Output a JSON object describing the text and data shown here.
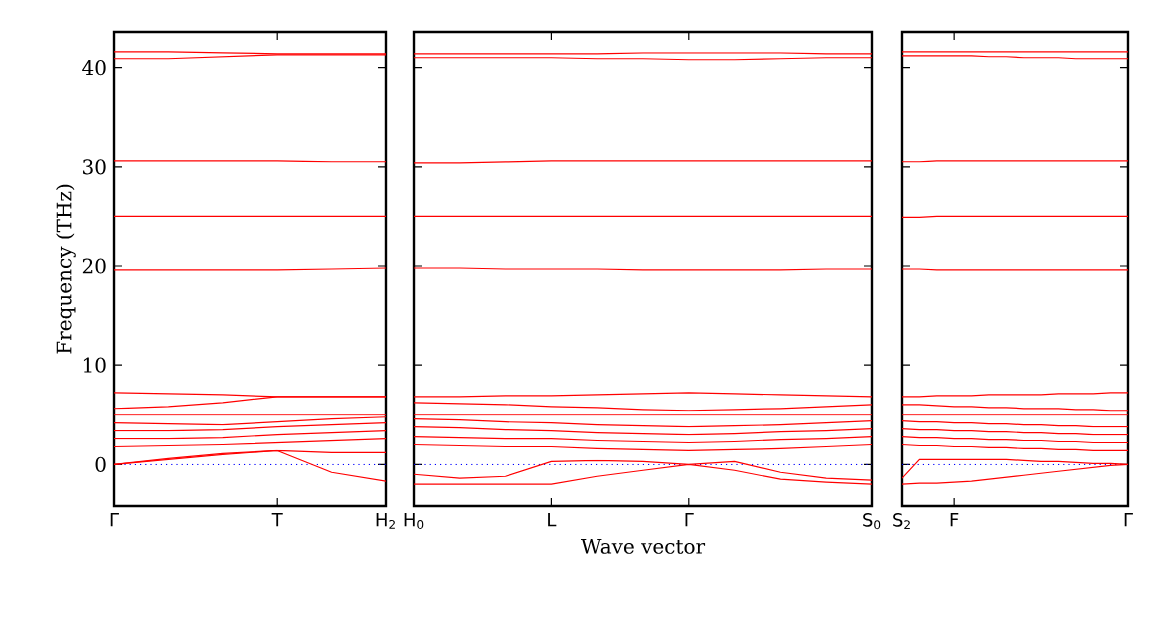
{
  "chart_data": [
    {
      "type": "line",
      "ylabel": "Frequency (THz)",
      "ylim": [
        -4.2,
        43.6
      ],
      "yticks": [
        0,
        10,
        20,
        30,
        40
      ],
      "categories": [
        "Γ",
        null,
        null,
        "T",
        null,
        "H$_{2}$"
      ],
      "line_style": "solid",
      "marker": "none",
      "ref_lines": [
        {
          "axis": "y",
          "value": 0,
          "color": "#0000ff",
          "line_style": "dotted"
        }
      ],
      "series": [
        {
          "color": "#ff0000",
          "values": [
            41.6,
            41.6,
            41.5,
            41.4,
            41.4,
            41.4
          ]
        },
        {
          "color": "#ff0000",
          "values": [
            40.9,
            40.9,
            41.1,
            41.3,
            41.3,
            41.3
          ]
        },
        {
          "color": "#ff0000",
          "values": [
            30.6,
            30.6,
            30.6,
            30.6,
            30.5,
            30.5
          ]
        },
        {
          "color": "#ff0000",
          "values": [
            25.0,
            25.0,
            25.0,
            25.0,
            25.0,
            25.0
          ]
        },
        {
          "color": "#ff0000",
          "values": [
            19.6,
            19.6,
            19.6,
            19.6,
            19.7,
            19.8
          ]
        },
        {
          "color": "#ff0000",
          "values": [
            7.2,
            7.1,
            7.0,
            6.8,
            6.8,
            6.8
          ]
        },
        {
          "color": "#ff0000",
          "values": [
            5.6,
            5.8,
            6.2,
            6.8,
            6.8,
            6.8
          ]
        },
        {
          "color": "#ff0000",
          "values": [
            5.0,
            5.0,
            5.0,
            5.0,
            5.0,
            5.0
          ]
        },
        {
          "color": "#ff0000",
          "values": [
            4.2,
            4.1,
            4.0,
            4.3,
            4.6,
            4.8
          ]
        },
        {
          "color": "#ff0000",
          "values": [
            3.4,
            3.4,
            3.5,
            3.8,
            4.0,
            4.2
          ]
        },
        {
          "color": "#ff0000",
          "values": [
            2.6,
            2.6,
            2.7,
            3.0,
            3.2,
            3.4
          ]
        },
        {
          "color": "#ff0000",
          "values": [
            1.8,
            1.9,
            2.0,
            2.2,
            2.4,
            2.6
          ]
        },
        {
          "color": "#ff0000",
          "values": [
            0.0,
            0.6,
            1.1,
            1.4,
            1.2,
            1.2
          ]
        },
        {
          "color": "#ff0000",
          "values": [
            0.0,
            0.5,
            1.0,
            1.4,
            -0.8,
            -1.7
          ]
        }
      ]
    },
    {
      "type": "line",
      "xlabel": "Wave vector",
      "ylim": [
        -4.2,
        43.6
      ],
      "yticks": [
        0,
        10,
        20,
        30,
        40
      ],
      "tick_labels": "x",
      "categories": [
        "H$_{0}$",
        null,
        null,
        "L",
        null,
        null,
        "Γ",
        null,
        null,
        null,
        "S$_{0}$"
      ],
      "line_style": "solid",
      "marker": "none",
      "ref_lines": [
        {
          "axis": "y",
          "value": 0,
          "color": "#0000ff",
          "line_style": "dotted"
        }
      ],
      "series": [
        {
          "color": "#ff0000",
          "values": [
            41.4,
            41.4,
            41.4,
            41.4,
            41.4,
            41.5,
            41.5,
            41.5,
            41.5,
            41.4,
            41.4
          ]
        },
        {
          "color": "#ff0000",
          "values": [
            41.0,
            41.0,
            41.0,
            41.0,
            40.9,
            40.9,
            40.8,
            40.8,
            40.9,
            41.0,
            41.0
          ]
        },
        {
          "color": "#ff0000",
          "values": [
            30.4,
            30.4,
            30.5,
            30.6,
            30.6,
            30.6,
            30.6,
            30.6,
            30.6,
            30.6,
            30.6
          ]
        },
        {
          "color": "#ff0000",
          "values": [
            25.0,
            25.0,
            25.0,
            25.0,
            25.0,
            25.0,
            25.0,
            25.0,
            25.0,
            25.0,
            25.0
          ]
        },
        {
          "color": "#ff0000",
          "values": [
            19.8,
            19.8,
            19.7,
            19.7,
            19.7,
            19.6,
            19.6,
            19.6,
            19.6,
            19.7,
            19.7
          ]
        },
        {
          "color": "#ff0000",
          "values": [
            6.8,
            6.8,
            6.9,
            6.9,
            7.0,
            7.1,
            7.2,
            7.1,
            7.0,
            6.9,
            6.8
          ]
        },
        {
          "color": "#ff0000",
          "values": [
            6.2,
            6.1,
            6.0,
            5.8,
            5.7,
            5.5,
            5.4,
            5.5,
            5.6,
            5.8,
            6.0
          ]
        },
        {
          "color": "#ff0000",
          "values": [
            5.0,
            5.0,
            5.0,
            5.0,
            5.0,
            5.0,
            5.0,
            5.0,
            5.0,
            5.0,
            5.0
          ]
        },
        {
          "color": "#ff0000",
          "values": [
            4.6,
            4.5,
            4.3,
            4.2,
            4.0,
            3.9,
            3.8,
            3.9,
            4.0,
            4.2,
            4.4
          ]
        },
        {
          "color": "#ff0000",
          "values": [
            3.8,
            3.7,
            3.5,
            3.4,
            3.2,
            3.1,
            3.0,
            3.1,
            3.3,
            3.4,
            3.6
          ]
        },
        {
          "color": "#ff0000",
          "values": [
            2.8,
            2.7,
            2.6,
            2.6,
            2.4,
            2.3,
            2.2,
            2.3,
            2.5,
            2.6,
            2.8
          ]
        },
        {
          "color": "#ff0000",
          "values": [
            2.0,
            1.9,
            1.8,
            1.8,
            1.6,
            1.5,
            1.4,
            1.5,
            1.6,
            1.8,
            2.0
          ]
        },
        {
          "color": "#ff0000",
          "values": [
            -1.0,
            -1.4,
            -1.2,
            0.3,
            0.4,
            0.3,
            0.0,
            0.3,
            -0.8,
            -1.4,
            -1.6
          ]
        },
        {
          "color": "#ff0000",
          "values": [
            -2.0,
            -2.0,
            -2.0,
            -2.0,
            -1.2,
            -0.6,
            0.0,
            -0.6,
            -1.5,
            -1.8,
            -2.0
          ]
        }
      ]
    },
    {
      "type": "line",
      "ylim": [
        -4.2,
        43.6
      ],
      "yticks": [
        0,
        10,
        20,
        30,
        40
      ],
      "tick_labels": "x",
      "categories": [
        "S$_{2}$",
        null,
        null,
        "F",
        null,
        null,
        null,
        null,
        null,
        null,
        null,
        null,
        null,
        "Γ"
      ],
      "line_style": "solid",
      "marker": "none",
      "ref_lines": [
        {
          "axis": "y",
          "value": 0,
          "color": "#0000ff",
          "line_style": "dotted"
        }
      ],
      "series": [
        {
          "color": "#ff0000",
          "values": [
            41.6,
            41.6,
            41.6,
            41.6,
            41.6,
            41.6,
            41.6,
            41.6,
            41.6,
            41.6,
            41.6,
            41.6,
            41.6,
            41.6
          ]
        },
        {
          "color": "#ff0000",
          "values": [
            41.2,
            41.2,
            41.2,
            41.2,
            41.2,
            41.1,
            41.1,
            41.0,
            41.0,
            41.0,
            40.9,
            40.9,
            40.9,
            40.9
          ]
        },
        {
          "color": "#ff0000",
          "values": [
            30.5,
            30.5,
            30.6,
            30.6,
            30.6,
            30.6,
            30.6,
            30.6,
            30.6,
            30.6,
            30.6,
            30.6,
            30.6,
            30.6
          ]
        },
        {
          "color": "#ff0000",
          "values": [
            24.9,
            24.9,
            25.0,
            25.0,
            25.0,
            25.0,
            25.0,
            25.0,
            25.0,
            25.0,
            25.0,
            25.0,
            25.0,
            25.0
          ]
        },
        {
          "color": "#ff0000",
          "values": [
            19.7,
            19.7,
            19.6,
            19.6,
            19.6,
            19.6,
            19.6,
            19.6,
            19.6,
            19.6,
            19.6,
            19.6,
            19.6,
            19.6
          ]
        },
        {
          "color": "#ff0000",
          "values": [
            6.8,
            6.8,
            6.9,
            6.9,
            6.9,
            7.0,
            7.0,
            7.0,
            7.0,
            7.1,
            7.1,
            7.1,
            7.2,
            7.2
          ]
        },
        {
          "color": "#ff0000",
          "values": [
            6.0,
            6.0,
            5.9,
            5.8,
            5.8,
            5.7,
            5.7,
            5.6,
            5.6,
            5.6,
            5.5,
            5.5,
            5.4,
            5.4
          ]
        },
        {
          "color": "#ff0000",
          "values": [
            5.0,
            5.0,
            5.0,
            5.0,
            5.0,
            5.0,
            5.0,
            5.0,
            5.0,
            5.0,
            5.0,
            5.0,
            5.0,
            5.0
          ]
        },
        {
          "color": "#ff0000",
          "values": [
            4.4,
            4.3,
            4.3,
            4.2,
            4.2,
            4.1,
            4.1,
            4.0,
            4.0,
            3.9,
            3.9,
            3.8,
            3.8,
            3.8
          ]
        },
        {
          "color": "#ff0000",
          "values": [
            3.6,
            3.5,
            3.5,
            3.4,
            3.4,
            3.3,
            3.3,
            3.2,
            3.2,
            3.1,
            3.1,
            3.0,
            3.0,
            3.0
          ]
        },
        {
          "color": "#ff0000",
          "values": [
            2.8,
            2.7,
            2.7,
            2.6,
            2.6,
            2.5,
            2.5,
            2.4,
            2.4,
            2.3,
            2.3,
            2.2,
            2.2,
            2.2
          ]
        },
        {
          "color": "#ff0000",
          "values": [
            2.0,
            1.9,
            1.9,
            1.8,
            1.8,
            1.7,
            1.7,
            1.6,
            1.6,
            1.5,
            1.5,
            1.4,
            1.4,
            1.4
          ]
        },
        {
          "color": "#ff0000",
          "values": [
            -1.4,
            0.5,
            0.5,
            0.5,
            0.5,
            0.5,
            0.5,
            0.4,
            0.3,
            0.3,
            0.2,
            0.1,
            0.1,
            0.0
          ]
        },
        {
          "color": "#ff0000",
          "values": [
            -2.0,
            -1.9,
            -1.9,
            -1.8,
            -1.7,
            -1.5,
            -1.3,
            -1.1,
            -0.9,
            -0.7,
            -0.5,
            -0.3,
            -0.1,
            0.0
          ]
        }
      ]
    }
  ]
}
